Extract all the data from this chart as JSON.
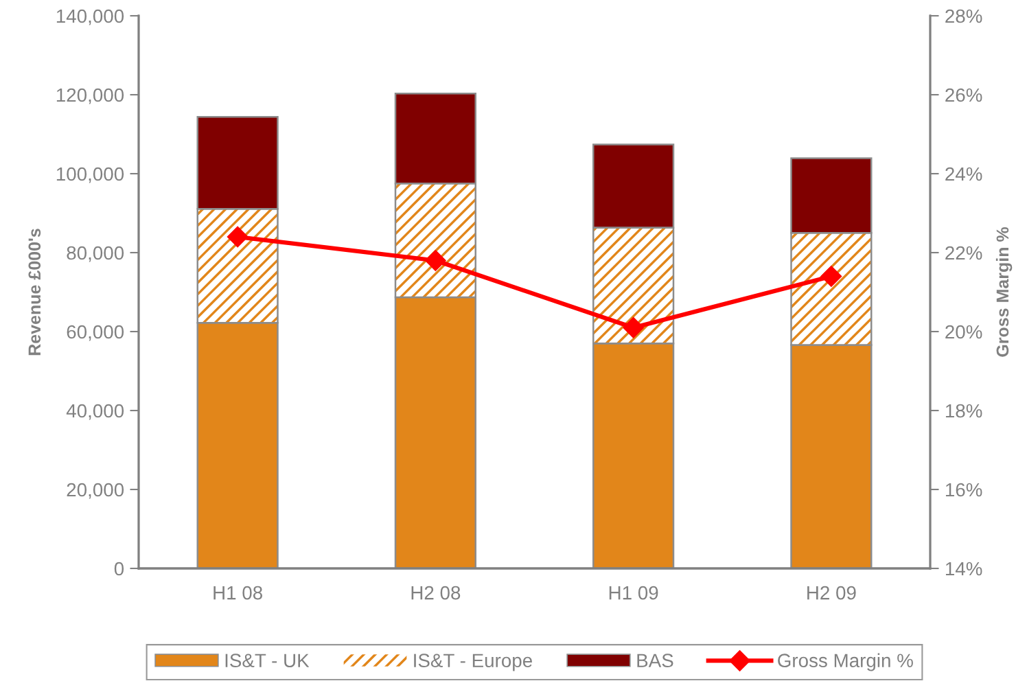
{
  "chart_data": {
    "type": "bar",
    "stacked": true,
    "ylabel": "Revenue £000's",
    "y2label": "Gross Margin %",
    "categories": [
      "H1 08",
      "H2 08",
      "H1 09",
      "H2 09"
    ],
    "series": [
      {
        "name": "IS&T - UK",
        "color": "#e2861a",
        "values": [
          62200,
          68700,
          57000,
          56600
        ]
      },
      {
        "name": "IS&T - Europe",
        "color": "#e2861a",
        "values": [
          28900,
          28800,
          29300,
          28400
        ]
      },
      {
        "name": "BAS",
        "color": "#800000",
        "values": [
          23300,
          22800,
          21100,
          18900
        ]
      },
      {
        "name": "Gross Margin %",
        "type": "line",
        "axis": "y2",
        "color": "#ff0000",
        "values": [
          22.4,
          21.8,
          20.1,
          21.4
        ]
      }
    ],
    "ylim": [
      0,
      140000
    ],
    "yticks": [
      0,
      {
        "value": 20000,
        "label": "20,000"
      },
      {
        "value": 40000,
        "label": "40,000"
      },
      {
        "value": 60000,
        "label": "60,000"
      },
      {
        "value": 80000,
        "label": "80,000"
      },
      {
        "value": 100000,
        "label": "100,000"
      },
      {
        "value": 120000,
        "label": "120,000"
      },
      {
        "value": 140000,
        "label": "140,000"
      }
    ],
    "y2lim": [
      14,
      28
    ],
    "y2ticks": [
      {
        "value": 14,
        "label": "14%"
      },
      {
        "value": 16,
        "label": "16%"
      },
      {
        "value": 18,
        "label": "18%"
      },
      {
        "value": 20,
        "label": "20%"
      },
      {
        "value": 22,
        "label": "22%"
      },
      {
        "value": 24,
        "label": "24%"
      },
      {
        "value": 26,
        "label": "26%"
      },
      {
        "value": 28,
        "label": "28%"
      }
    ],
    "marker": "diamond",
    "line_style": "solid",
    "legend": "bottom",
    "grid": false
  }
}
